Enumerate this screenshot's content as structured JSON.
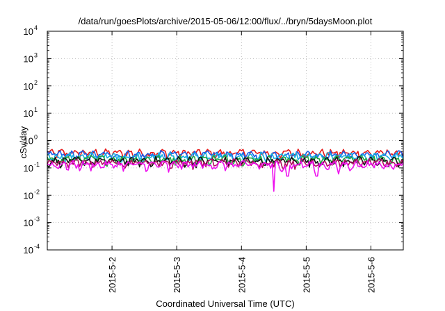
{
  "chart_data": {
    "type": "line",
    "title": "/data/run/goesPlots/archive/2015-05-06/12:00/flux/../bryn/5daysMoon.plot",
    "xlabel": "Coordinated Universal Time (UTC)",
    "ylabel": "cSv/day",
    "yscale": "log",
    "ylim": [
      0.0001,
      10000
    ],
    "xlim": [
      "2015-05-01T00:00",
      "2015-05-06T12:00"
    ],
    "grid": true,
    "yticks": [
      {
        "base": "10",
        "exp": "-4",
        "value": 0.0001
      },
      {
        "base": "10",
        "exp": "-3",
        "value": 0.001
      },
      {
        "base": "10",
        "exp": "-2",
        "value": 0.01
      },
      {
        "base": "10",
        "exp": "-1",
        "value": 0.1
      },
      {
        "base": "10",
        "exp": "0",
        "value": 1
      },
      {
        "base": "10",
        "exp": "1",
        "value": 10
      },
      {
        "base": "10",
        "exp": "2",
        "value": 100
      },
      {
        "base": "10",
        "exp": "3",
        "value": 1000
      },
      {
        "base": "10",
        "exp": "4",
        "value": 10000
      }
    ],
    "xticks": [
      {
        "label": "2015-5-2",
        "value": "2015-05-02T00:00"
      },
      {
        "label": "2015-5-3",
        "value": "2015-05-03T00:00"
      },
      {
        "label": "2015-5-4",
        "value": "2015-05-04T00:00"
      },
      {
        "label": "2015-5-5",
        "value": "2015-05-05T00:00"
      },
      {
        "label": "2015-5-6",
        "value": "2015-05-06T00:00"
      }
    ],
    "series": [
      {
        "color": "#e8191a",
        "level": 0.35
      },
      {
        "color": "#1a5ee8",
        "level": 0.3
      },
      {
        "color": "#16b0e0",
        "level": 0.26
      },
      {
        "color": "#1fa640",
        "level": 0.21
      },
      {
        "color": "#111111",
        "level": 0.18
      },
      {
        "color": "#b01060",
        "level": 0.155
      },
      {
        "color": "#ee10ee",
        "level": 0.13
      }
    ],
    "dips": [
      {
        "x": "2015-05-02T21:00",
        "value": 0.07
      },
      {
        "x": "2015-05-04T12:00",
        "value": 0.014
      },
      {
        "x": "2015-05-04T17:00",
        "value": 0.05
      },
      {
        "x": "2015-05-05T04:00",
        "value": 0.05
      },
      {
        "x": "2015-05-05T12:00",
        "value": 0.06
      }
    ]
  }
}
